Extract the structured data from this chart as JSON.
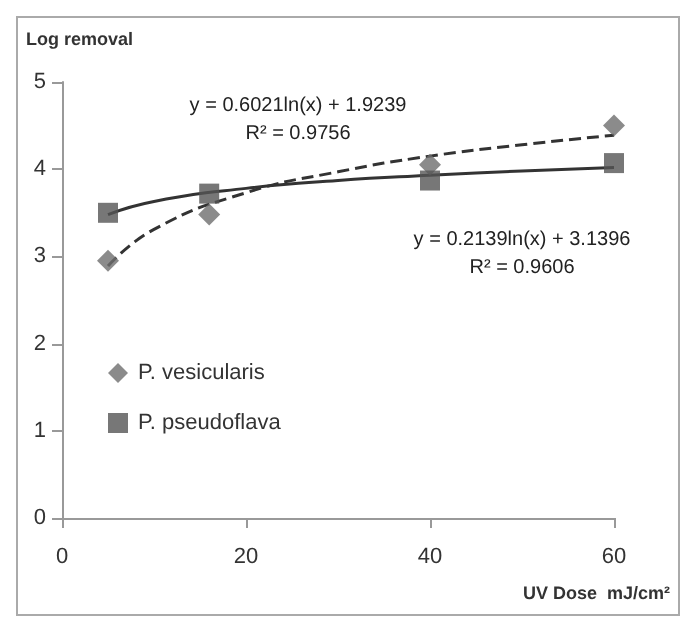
{
  "chart_data": {
    "type": "scatter",
    "ylabel": "Log removal",
    "xlabel": "UV Dose  mJ/cm²",
    "xlim": [
      0,
      60
    ],
    "xticks": [
      0,
      20,
      40,
      60
    ],
    "ylim": [
      0,
      5
    ],
    "yticks": [
      0,
      1,
      2,
      3,
      4,
      5
    ],
    "grid": false,
    "legend": "bottom left",
    "series": [
      {
        "name": "P. vesicularis",
        "color": "#6e6e6e",
        "marker": "diamond",
        "x": [
          5,
          16,
          40,
          60
        ],
        "values": [
          2.95,
          3.48,
          4.05,
          4.5
        ]
      },
      {
        "name": "P. pseudoflava",
        "color": "#555555",
        "marker": "square",
        "x": [
          5,
          16,
          40,
          60
        ],
        "values": [
          3.5,
          3.72,
          3.87,
          4.07
        ]
      },
      {
        "type": "line",
        "color": "#333333",
        "line_style": "dashed",
        "marker": "none",
        "x": [
          5,
          10,
          20,
          30,
          40,
          50,
          60
        ],
        "values": [
          2.89,
          3.31,
          3.73,
          3.97,
          4.15,
          4.28,
          4.39
        ]
      },
      {
        "type": "line",
        "color": "#333333",
        "line_style": "solid",
        "marker": "none",
        "x": [
          5,
          10,
          20,
          30,
          40,
          50,
          60
        ],
        "values": [
          3.48,
          3.63,
          3.78,
          3.87,
          3.93,
          3.98,
          4.02
        ]
      }
    ],
    "annotations": [
      "y = 0.6021ln(x) + 1.9239",
      "R² = 0.9756",
      "y = 0.2139ln(x) + 3.1396",
      "R² = 0.9606"
    ]
  }
}
